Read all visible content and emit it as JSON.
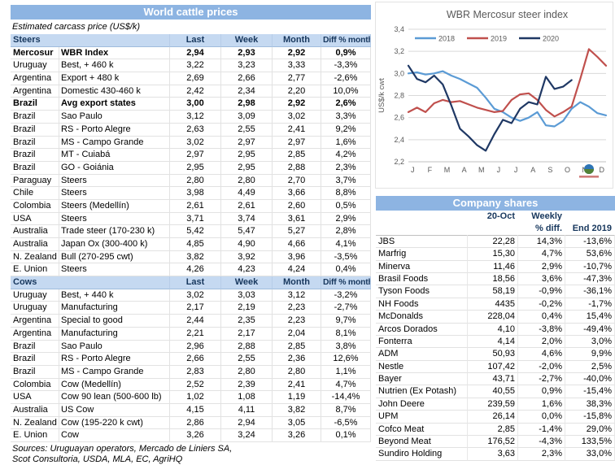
{
  "left_panel": {
    "title": "World cattle prices",
    "subtitle": "Estimated carcass price (US$/k)",
    "columns": [
      "Last",
      "Week",
      "Month",
      "Diff % month"
    ],
    "sections": [
      {
        "label": "Steers",
        "rows": [
          {
            "country": "Mercosur",
            "item": "WBR Index",
            "last": "2,94",
            "week": "2,93",
            "month": "2,92",
            "diff": "0,9%",
            "bold": true
          },
          {
            "country": "Uruguay",
            "item": "Best, + 460 k",
            "last": "3,22",
            "week": "3,23",
            "month": "3,33",
            "diff": "-3,3%"
          },
          {
            "country": "Argentina",
            "item": "Export + 480 k",
            "last": "2,69",
            "week": "2,66",
            "month": "2,77",
            "diff": "-2,6%"
          },
          {
            "country": "Argentina",
            "item": "Domestic 430-460 k",
            "last": "2,42",
            "week": "2,34",
            "month": "2,20",
            "diff": "10,0%"
          },
          {
            "country": "Brazil",
            "item": "Avg export states",
            "last": "3,00",
            "week": "2,98",
            "month": "2,92",
            "diff": "2,6%",
            "bold": true
          },
          {
            "country": "Brazil",
            "item": "Sao Paulo",
            "last": "3,12",
            "week": "3,09",
            "month": "3,02",
            "diff": "3,3%"
          },
          {
            "country": "Brazil",
            "item": "RS - Porto Alegre",
            "last": "2,63",
            "week": "2,55",
            "month": "2,41",
            "diff": "9,2%"
          },
          {
            "country": "Brazil",
            "item": "MS - Campo Grande",
            "last": "3,02",
            "week": "2,97",
            "month": "2,97",
            "diff": "1,6%"
          },
          {
            "country": "Brazil",
            "item": "MT - Cuiabá",
            "last": "2,97",
            "week": "2,95",
            "month": "2,85",
            "diff": "4,2%"
          },
          {
            "country": "Brazil",
            "item": "GO - Goiánia",
            "last": "2,95",
            "week": "2,95",
            "month": "2,88",
            "diff": "2,3%"
          },
          {
            "country": "Paraguay",
            "item": "Steers",
            "last": "2,80",
            "week": "2,80",
            "month": "2,70",
            "diff": "3,7%"
          },
          {
            "country": "Chile",
            "item": "Steers",
            "last": "3,98",
            "week": "4,49",
            "month": "3,66",
            "diff": "8,8%"
          },
          {
            "country": "Colombia",
            "item": "Steers (Medellín)",
            "last": "2,61",
            "week": "2,61",
            "month": "2,60",
            "diff": "0,5%"
          },
          {
            "country": "USA",
            "item": "Steers",
            "last": "3,71",
            "week": "3,74",
            "month": "3,61",
            "diff": "2,9%"
          },
          {
            "country": "Australia",
            "item": "Trade steer (170-230 k)",
            "last": "5,42",
            "week": "5,47",
            "month": "5,27",
            "diff": "2,8%"
          },
          {
            "country": "Australia",
            "item": "Japan Ox (300-400 k)",
            "last": "4,85",
            "week": "4,90",
            "month": "4,66",
            "diff": "4,1%"
          },
          {
            "country": "N. Zealand",
            "item": "Bull (270-295 cwt)",
            "last": "3,82",
            "week": "3,92",
            "month": "3,96",
            "diff": "-3,5%"
          },
          {
            "country": "E. Union",
            "item": "Steers",
            "last": "4,26",
            "week": "4,23",
            "month": "4,24",
            "diff": "0,4%"
          }
        ]
      },
      {
        "label": "Cows",
        "rows": [
          {
            "country": "Uruguay",
            "item": "Best, + 440 k",
            "last": "3,02",
            "week": "3,03",
            "month": "3,12",
            "diff": "-3,2%"
          },
          {
            "country": "Uruguay",
            "item": "Manufacturing",
            "last": "2,17",
            "week": "2,19",
            "month": "2,23",
            "diff": "-2,7%"
          },
          {
            "country": "Argentina",
            "item": "Special to good",
            "last": "2,44",
            "week": "2,35",
            "month": "2,23",
            "diff": "9,7%"
          },
          {
            "country": "Argentina",
            "item": "Manufacturing",
            "last": "2,21",
            "week": "2,17",
            "month": "2,04",
            "diff": "8,1%"
          },
          {
            "country": "Brazil",
            "item": "Sao Paulo",
            "last": "2,96",
            "week": "2,88",
            "month": "2,85",
            "diff": "3,8%"
          },
          {
            "country": "Brazil",
            "item": "RS - Porto Alegre",
            "last": "2,66",
            "week": "2,55",
            "month": "2,36",
            "diff": "12,6%"
          },
          {
            "country": "Brazil",
            "item": "MS - Campo Grande",
            "last": "2,83",
            "week": "2,80",
            "month": "2,80",
            "diff": "1,1%"
          },
          {
            "country": "Colombia",
            "item": "Cow (Medellín)",
            "last": "2,52",
            "week": "2,39",
            "month": "2,41",
            "diff": "4,7%"
          },
          {
            "country": "USA",
            "item": "Cow 90 lean (500-600 lb)",
            "last": "1,02",
            "week": "1,08",
            "month": "1,19",
            "diff": "-14,4%"
          },
          {
            "country": "Australia",
            "item": "US Cow",
            "last": "4,15",
            "week": "4,11",
            "month": "3,82",
            "diff": "8,7%"
          },
          {
            "country": "N. Zealand",
            "item": "Cow (195-220 k cwt)",
            "last": "2,86",
            "week": "2,94",
            "month": "3,05",
            "diff": "-6,5%"
          },
          {
            "country": "E. Union",
            "item": "Cow",
            "last": "3,26",
            "week": "3,24",
            "month": "3,26",
            "diff": "0,1%"
          }
        ]
      }
    ],
    "sources": [
      "Sources: Uruguayan operators, Mercado de Liniers SA,",
      "Scot Consultoria, USDA, MLA, EC, AgriHQ"
    ]
  },
  "company_shares": {
    "title": "Company shares",
    "header_rows": [
      [
        "",
        "20-Oct",
        "Weekly",
        ""
      ],
      [
        "",
        "",
        "% diff.",
        "End 2019"
      ]
    ],
    "rows": [
      {
        "name": "JBS",
        "price": "22,28",
        "weekly": "14,3%",
        "end2019": "-13,6%"
      },
      {
        "name": "Marfrig",
        "price": "15,30",
        "weekly": "4,7%",
        "end2019": "53,6%"
      },
      {
        "name": "Minerva",
        "price": "11,46",
        "weekly": "2,9%",
        "end2019": "-10,7%"
      },
      {
        "name": "Brasil Foods",
        "price": "18,56",
        "weekly": "3,6%",
        "end2019": "-47,3%"
      },
      {
        "name": "Tyson Foods",
        "price": "58,19",
        "weekly": "-0,9%",
        "end2019": "-36,1%"
      },
      {
        "name": "NH Foods",
        "price": "4435",
        "weekly": "-0,2%",
        "end2019": "-1,7%"
      },
      {
        "name": "McDonalds",
        "price": "228,04",
        "weekly": "0,4%",
        "end2019": "15,4%"
      },
      {
        "name": "Arcos Dorados",
        "price": "4,10",
        "weekly": "-3,8%",
        "end2019": "-49,4%"
      },
      {
        "name": "Fonterra",
        "price": "4,14",
        "weekly": "2,0%",
        "end2019": "3,0%"
      },
      {
        "name": "ADM",
        "price": "50,93",
        "weekly": "4,6%",
        "end2019": "9,9%"
      },
      {
        "name": "Nestle",
        "price": "107,42",
        "weekly": "-2,0%",
        "end2019": "2,5%"
      },
      {
        "name": "Bayer",
        "price": "43,71",
        "weekly": "-2,7%",
        "end2019": "-40,0%"
      },
      {
        "name": "Nutrien (Ex Potash)",
        "price": "40,55",
        "weekly": "0,9%",
        "end2019": "-15,4%"
      },
      {
        "name": "John Deere",
        "price": "239,59",
        "weekly": "1,6%",
        "end2019": "38,3%"
      },
      {
        "name": "UPM",
        "price": "26,14",
        "weekly": "0,0%",
        "end2019": "-15,8%"
      },
      {
        "name": "Cofco Meat",
        "price": "2,85",
        "weekly": "-1,4%",
        "end2019": "29,0%"
      },
      {
        "name": "Beyond Meat",
        "price": "176,52",
        "weekly": "-4,3%",
        "end2019": "133,5%"
      },
      {
        "name": "Sundiro Holding",
        "price": "3,63",
        "weekly": "2,3%",
        "end2019": "33,0%"
      }
    ]
  },
  "chart_data": {
    "type": "line",
    "title": "WBR Mercosur steer index",
    "xlabel": "",
    "ylabel": "US$/k cwt",
    "ylim": [
      2.2,
      3.4
    ],
    "ytick_step": 0.2,
    "grid": true,
    "legend_position": "top",
    "x_months": [
      "J",
      "F",
      "M",
      "A",
      "M",
      "J",
      "J",
      "A",
      "S",
      "O",
      "N",
      "D"
    ],
    "points_per_month": 2,
    "series": [
      {
        "name": "2018",
        "color": "#5B9BD5",
        "values": [
          3.0,
          3.01,
          2.99,
          3.0,
          3.02,
          2.98,
          2.95,
          2.91,
          2.87,
          2.78,
          2.68,
          2.65,
          2.6,
          2.57,
          2.6,
          2.65,
          2.53,
          2.52,
          2.57,
          2.68,
          2.74,
          2.7,
          2.64,
          2.62
        ]
      },
      {
        "name": "2019",
        "color": "#C0504D",
        "values": [
          2.65,
          2.69,
          2.65,
          2.73,
          2.76,
          2.74,
          2.75,
          2.72,
          2.69,
          2.67,
          2.65,
          2.66,
          2.76,
          2.81,
          2.82,
          2.76,
          2.67,
          2.61,
          2.65,
          2.7,
          2.95,
          3.22,
          3.15,
          3.07
        ]
      },
      {
        "name": "2020",
        "color": "#1F3864",
        "values": [
          3.07,
          2.95,
          2.92,
          2.98,
          2.9,
          2.71,
          2.5,
          2.43,
          2.35,
          2.3,
          2.45,
          2.58,
          2.55,
          2.68,
          2.74,
          2.72,
          2.97,
          2.86,
          2.88,
          2.94
        ]
      }
    ]
  },
  "colors": {
    "header_bar": "#8DB4E2",
    "sub_header": "#C5D9F1",
    "header_text": "#17375D",
    "chart_text": "#595959"
  }
}
